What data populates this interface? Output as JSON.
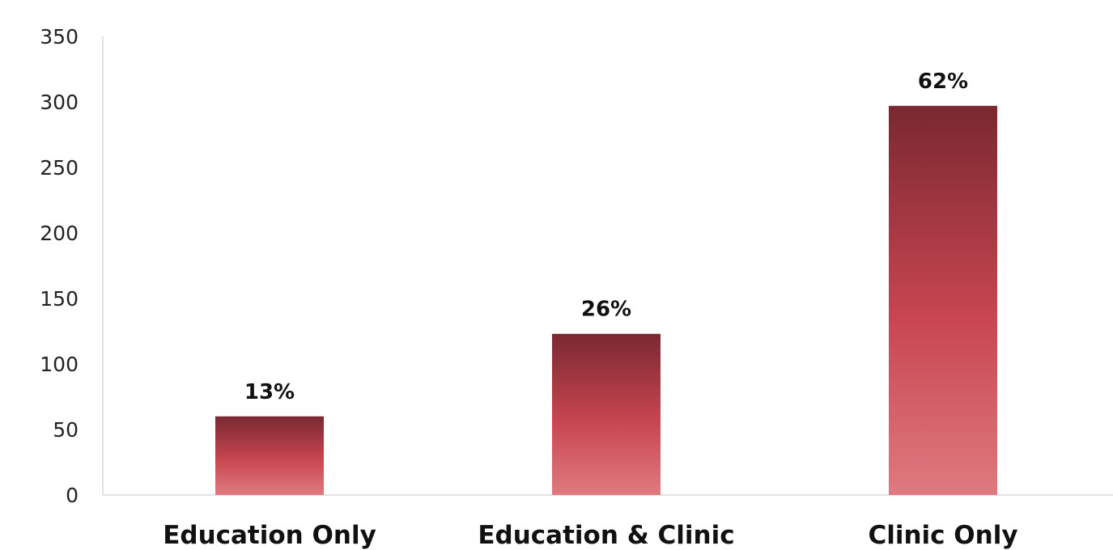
{
  "chart_data": {
    "type": "bar",
    "title": "",
    "xlabel": "",
    "ylabel": "",
    "categories": [
      "Education Only",
      "Education & Clinic",
      "Clinic Only"
    ],
    "values": [
      60,
      123,
      297
    ],
    "data_labels": [
      "13%",
      "26%",
      "62%"
    ],
    "ylim": [
      0,
      350
    ],
    "yticks": [
      "0",
      "50",
      "100",
      "150",
      "200",
      "250",
      "300",
      "350"
    ],
    "grid": false,
    "legend": "none",
    "colors": {
      "bar_top": "#7a2831",
      "bar_mid": "#c84651",
      "bar_bottom": "#df7a80"
    }
  }
}
